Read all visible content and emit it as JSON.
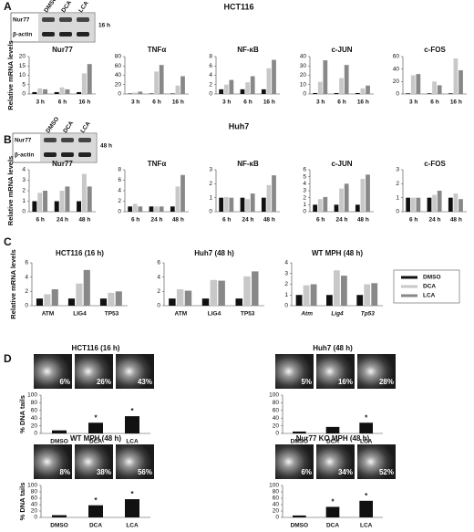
{
  "panel_labels": [
    "A",
    "B",
    "C",
    "D"
  ],
  "row_titles": [
    "HCT116",
    "Huh7"
  ],
  "blots": [
    {
      "columns": [
        "DMSO",
        "DCA",
        "LCA"
      ],
      "rows": [
        "Nur77",
        "β-actin"
      ],
      "time": "16 h"
    },
    {
      "columns": [
        "DMSO",
        "DCA",
        "LCA"
      ],
      "rows": [
        "Nur77",
        "β-actin"
      ],
      "time": "48 h"
    }
  ],
  "chart_data": [
    {
      "type": "bar",
      "title": "Nur77",
      "ylabel": "Relative mRNA levels",
      "categories": [
        "3 h",
        "6 h",
        "16 h"
      ],
      "ylim": [
        0,
        20
      ],
      "yticks": [
        0,
        5,
        10,
        15,
        20
      ],
      "series": [
        {
          "color": "#111111",
          "values": [
            1,
            1,
            1
          ]
        },
        {
          "color": "#c8c8c8",
          "values": [
            3,
            3.5,
            11
          ]
        },
        {
          "color": "#888888",
          "values": [
            2.5,
            2.5,
            16
          ]
        }
      ]
    },
    {
      "type": "bar",
      "title": "TNFα",
      "categories": [
        "3 h",
        "6 h",
        "16 h"
      ],
      "ylim": [
        0,
        80
      ],
      "yticks": [
        0,
        20,
        40,
        60,
        80
      ],
      "series": [
        {
          "color": "#111111",
          "values": [
            1,
            1,
            1
          ]
        },
        {
          "color": "#c8c8c8",
          "values": [
            3,
            48,
            18
          ]
        },
        {
          "color": "#888888",
          "values": [
            5,
            62,
            38
          ]
        }
      ]
    },
    {
      "type": "bar",
      "title": "NF-κB",
      "categories": [
        "3 h",
        "6 h",
        "16 h"
      ],
      "ylim": [
        0,
        8
      ],
      "yticks": [
        0,
        2,
        4,
        6,
        8
      ],
      "series": [
        {
          "color": "#111111",
          "values": [
            1,
            1,
            1
          ]
        },
        {
          "color": "#c8c8c8",
          "values": [
            2,
            2.5,
            5.5
          ]
        },
        {
          "color": "#888888",
          "values": [
            3,
            3.8,
            7.3
          ]
        }
      ]
    },
    {
      "type": "bar",
      "title": "c-JUN",
      "categories": [
        "3 h",
        "6 h",
        "16 h"
      ],
      "ylim": [
        0,
        40
      ],
      "yticks": [
        0,
        10,
        20,
        30,
        40
      ],
      "series": [
        {
          "color": "#111111",
          "values": [
            1,
            1,
            1
          ]
        },
        {
          "color": "#c8c8c8",
          "values": [
            13,
            17,
            6
          ]
        },
        {
          "color": "#888888",
          "values": [
            36,
            31,
            9
          ]
        }
      ]
    },
    {
      "type": "bar",
      "title": "c-FOS",
      "categories": [
        "3 h",
        "6 h",
        "16 h"
      ],
      "ylim": [
        0,
        60
      ],
      "yticks": [
        0,
        20,
        40,
        60
      ],
      "series": [
        {
          "color": "#111111",
          "values": [
            1,
            1,
            1
          ]
        },
        {
          "color": "#c8c8c8",
          "values": [
            30,
            20,
            57
          ]
        },
        {
          "color": "#888888",
          "values": [
            32,
            14,
            38
          ]
        }
      ]
    },
    {
      "type": "bar",
      "title": "Nur77",
      "ylabel": "Relative mRNA levels",
      "categories": [
        "6 h",
        "24 h",
        "48 h"
      ],
      "ylim": [
        0,
        4
      ],
      "yticks": [
        0,
        1,
        2,
        3,
        4
      ],
      "series": [
        {
          "color": "#111111",
          "values": [
            1,
            1,
            1
          ]
        },
        {
          "color": "#c8c8c8",
          "values": [
            1.8,
            2,
            3.6
          ]
        },
        {
          "color": "#888888",
          "values": [
            2,
            2.4,
            2.4
          ]
        }
      ]
    },
    {
      "type": "bar",
      "title": "TNFα",
      "categories": [
        "6 h",
        "24 h",
        "48 h"
      ],
      "ylim": [
        0,
        8
      ],
      "yticks": [
        0,
        2,
        4,
        6,
        8
      ],
      "series": [
        {
          "color": "#111111",
          "values": [
            1,
            1,
            1
          ]
        },
        {
          "color": "#c8c8c8",
          "values": [
            1.5,
            1,
            4.8
          ]
        },
        {
          "color": "#888888",
          "values": [
            1,
            1,
            7
          ]
        }
      ]
    },
    {
      "type": "bar",
      "title": "NF-κB",
      "categories": [
        "6 h",
        "24 h",
        "48 h"
      ],
      "ylim": [
        0,
        3
      ],
      "yticks": [
        0,
        1,
        2,
        3
      ],
      "series": [
        {
          "color": "#111111",
          "values": [
            1,
            1,
            1
          ]
        },
        {
          "color": "#c8c8c8",
          "values": [
            1.05,
            0.9,
            1.9
          ]
        },
        {
          "color": "#888888",
          "values": [
            1,
            1.3,
            2.6
          ]
        }
      ]
    },
    {
      "type": "bar",
      "title": "c-JUN",
      "categories": [
        "6 h",
        "24 h",
        "48 h"
      ],
      "ylim": [
        0,
        6
      ],
      "yticks": [
        0,
        1,
        2,
        3,
        4,
        5,
        6
      ],
      "series": [
        {
          "color": "#111111",
          "values": [
            1,
            1,
            1
          ]
        },
        {
          "color": "#c8c8c8",
          "values": [
            1.8,
            3.3,
            4.7
          ]
        },
        {
          "color": "#888888",
          "values": [
            2.1,
            4,
            5.3
          ]
        }
      ]
    },
    {
      "type": "bar",
      "title": "c-FOS",
      "categories": [
        "6 h",
        "24 h",
        "48 h"
      ],
      "ylim": [
        0,
        3
      ],
      "yticks": [
        0,
        1,
        2,
        3
      ],
      "series": [
        {
          "color": "#111111",
          "values": [
            1,
            1,
            1
          ]
        },
        {
          "color": "#c8c8c8",
          "values": [
            1,
            1.2,
            1.3
          ]
        },
        {
          "color": "#888888",
          "values": [
            1,
            1.5,
            0.9
          ]
        }
      ]
    },
    {
      "type": "bar",
      "title": "HCT116 (16 h)",
      "ylabel": "Relative mRNA levels",
      "categories": [
        "ATM",
        "LIG4",
        "TP53"
      ],
      "ylim": [
        0,
        6
      ],
      "yticks": [
        0,
        2,
        4,
        6
      ],
      "series": [
        {
          "color": "#111111",
          "values": [
            1,
            1,
            1
          ]
        },
        {
          "color": "#c8c8c8",
          "values": [
            1.6,
            3.1,
            1.8
          ]
        },
        {
          "color": "#888888",
          "values": [
            2.3,
            5,
            2
          ]
        }
      ]
    },
    {
      "type": "bar",
      "title": "Huh7 (48 h)",
      "categories": [
        "ATM",
        "LIG4",
        "TP53"
      ],
      "ylim": [
        0,
        6
      ],
      "yticks": [
        0,
        2,
        4,
        6
      ],
      "series": [
        {
          "color": "#111111",
          "values": [
            1,
            1,
            1
          ]
        },
        {
          "color": "#c8c8c8",
          "values": [
            2.3,
            3.6,
            4.1
          ]
        },
        {
          "color": "#888888",
          "values": [
            2.1,
            3.5,
            4.8
          ]
        }
      ]
    },
    {
      "type": "bar",
      "title": "WT MPH (48 h)",
      "categories": [
        "Atm",
        "Lig4",
        "Tp53"
      ],
      "italic_categories": true,
      "ylim": [
        0,
        4
      ],
      "yticks": [
        0,
        1,
        2,
        3,
        4
      ],
      "legend": "right",
      "series": [
        {
          "name": "DMSO",
          "color": "#111111",
          "values": [
            1,
            1,
            1
          ]
        },
        {
          "name": "DCA",
          "color": "#c8c8c8",
          "values": [
            1.9,
            3.3,
            2
          ]
        },
        {
          "name": "LCA",
          "color": "#888888",
          "values": [
            2,
            2.8,
            2.1
          ]
        }
      ]
    },
    {
      "type": "column",
      "title": "HCT116 (16 h)",
      "ylabel": "% DNA tails",
      "categories": [
        "DMSO",
        "DCA",
        "LCA"
      ],
      "values": [
        8,
        28,
        45
      ],
      "color": "#111111",
      "significance": [
        null,
        "*",
        "*"
      ],
      "image_labels": [
        "6%",
        "26%",
        "43%"
      ],
      "ylim": [
        0,
        100
      ],
      "yticks": [
        0,
        20,
        40,
        60,
        80,
        100
      ]
    },
    {
      "type": "column",
      "title": "Huh7 (48 h)",
      "categories": [
        "DMSO",
        "DCA",
        "LCA"
      ],
      "values": [
        5,
        17,
        28
      ],
      "color": "#111111",
      "significance": [
        null,
        null,
        "*"
      ],
      "image_labels": [
        "5%",
        "16%",
        "28%"
      ],
      "ylim": [
        0,
        100
      ],
      "yticks": [
        0,
        20,
        40,
        60,
        80,
        100
      ]
    },
    {
      "type": "column",
      "title": "WT MPH (48 h)",
      "ylabel": "% DNA tails",
      "categories": [
        "DMSO",
        "DCA",
        "LCA"
      ],
      "values": [
        7,
        38,
        57
      ],
      "color": "#111111",
      "significance": [
        null,
        "*",
        "*"
      ],
      "image_labels": [
        "8%",
        "38%",
        "56%"
      ],
      "ylim": [
        0,
        100
      ],
      "yticks": [
        0,
        20,
        40,
        60,
        80,
        100
      ]
    },
    {
      "type": "column",
      "title": "Nur77 KO MPH (48 h)",
      "categories": [
        "DMSO",
        "DCA",
        "LCA"
      ],
      "values": [
        6,
        33,
        52
      ],
      "color": "#111111",
      "significance": [
        null,
        "*",
        "*"
      ],
      "image_labels": [
        "6%",
        "34%",
        "52%"
      ],
      "ylim": [
        0,
        100
      ],
      "yticks": [
        0,
        20,
        40,
        60,
        80,
        100
      ]
    }
  ]
}
